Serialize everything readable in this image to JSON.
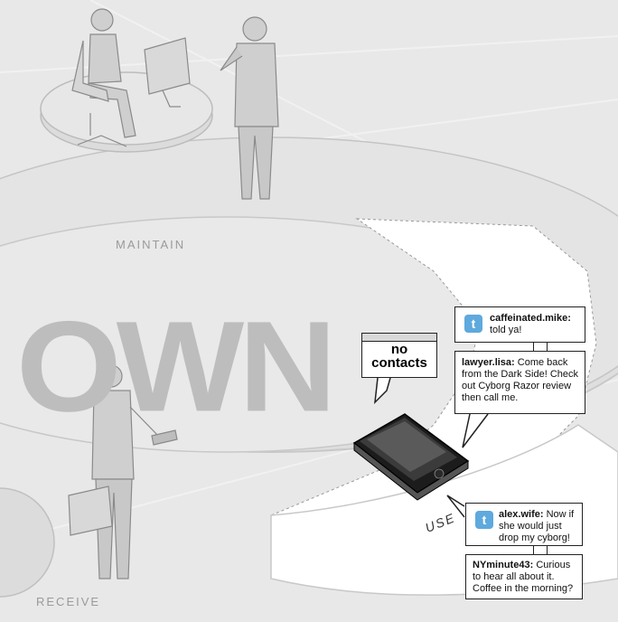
{
  "labels": {
    "own": "OWN",
    "maintain": "MAINTAIN",
    "use": "USE",
    "receive": "RECEIVE"
  },
  "no_contacts": {
    "line1": "no",
    "line2": "contacts"
  },
  "tweets": [
    {
      "handle": "caffeinated.mike:",
      "text": "told ya!",
      "icon": "twitter-bird-icon"
    },
    {
      "handle": "lawyer.lisa:",
      "text": "Come back from the Dark Side! Check out Cyborg Razor review then call me."
    },
    {
      "handle": "alex.wife:",
      "text": "Now if she would just drop my cyborg!",
      "icon": "twitter-bird-icon"
    },
    {
      "handle": "NYminute43:",
      "text": "Curious to hear all about it. Coffee in the morning?"
    }
  ],
  "colors": {
    "background": "#e8e8e8",
    "platform": "#dcdcdc",
    "highlight_path": "#ffffff",
    "twitter_blue": "#5ea9dd"
  }
}
